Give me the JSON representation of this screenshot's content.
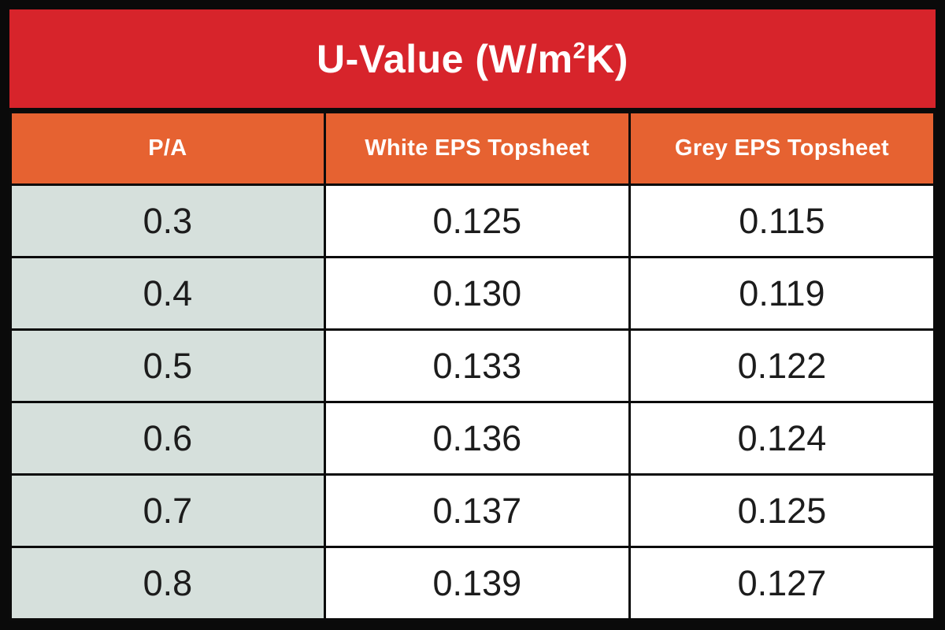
{
  "banner": {
    "title_prefix": "U-Value (W/m",
    "title_sup": "2",
    "title_suffix": "K)"
  },
  "colors": {
    "banner_red": "#d7242b",
    "header_orange": "#e66231",
    "pa_column_bg": "#d6e0dc",
    "cell_bg": "#ffffff",
    "border_black": "#0b0b0b",
    "title_text": "#ffffff",
    "data_text": "#1c1c1c"
  },
  "chart_data": {
    "type": "table",
    "title": "U-Value (W/m²K)",
    "columns": [
      "P/A",
      "White EPS Topsheet",
      "Grey EPS Topsheet"
    ],
    "rows": [
      [
        "0.3",
        "0.125",
        "0.115"
      ],
      [
        "0.4",
        "0.130",
        "0.119"
      ],
      [
        "0.5",
        "0.133",
        "0.122"
      ],
      [
        "0.6",
        "0.136",
        "0.124"
      ],
      [
        "0.7",
        "0.137",
        "0.125"
      ],
      [
        "0.8",
        "0.139",
        "0.127"
      ]
    ]
  }
}
